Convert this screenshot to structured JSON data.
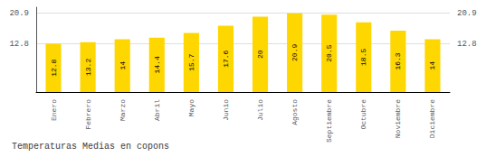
{
  "chart_data": {
    "type": "bar",
    "title": "Temperaturas Medias en copons",
    "categories": [
      "Enero",
      "Febrero",
      "Marzo",
      "Abril",
      "Mayo",
      "Junio",
      "Julio",
      "Agosto",
      "Septiembre",
      "Octubre",
      "Noviembre",
      "Diciembre"
    ],
    "values": [
      12.8,
      13.2,
      14.0,
      14.4,
      15.7,
      17.6,
      20.0,
      20.9,
      20.5,
      18.5,
      16.3,
      14.0
    ],
    "color": "#FFD700",
    "ylim": [
      0,
      22.5
    ],
    "yticks": [
      12.8,
      20.9
    ],
    "grid": true,
    "data_labels": true
  }
}
